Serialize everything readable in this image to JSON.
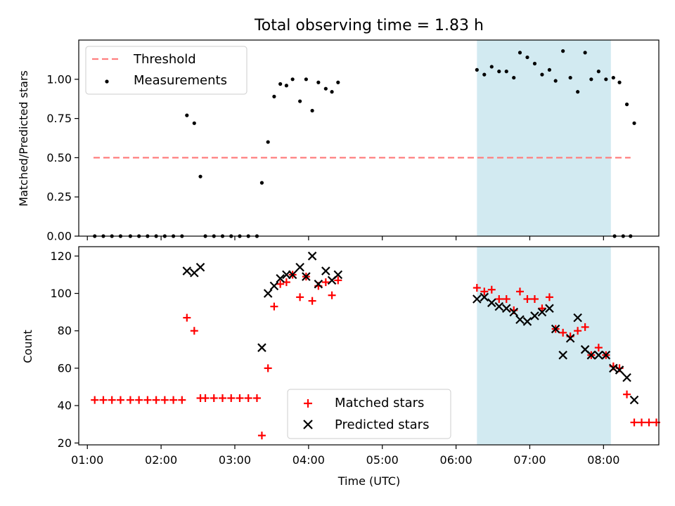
{
  "title": "Total observing time = 1.83 h",
  "chart_data": [
    {
      "type": "scatter",
      "ylabel": "Matched/Predicted stars",
      "xlabel": "",
      "xlim": [
        "00:53",
        "08:45"
      ],
      "ylim": [
        0,
        1.25
      ],
      "yticks": [
        0.0,
        0.25,
        0.5,
        0.75,
        1.0
      ],
      "ytick_labels": [
        "0.00",
        "0.25",
        "0.50",
        "0.75",
        "1.00"
      ],
      "grid": false,
      "legend_position": "top-left",
      "shaded_region": {
        "x0": "06:17",
        "x1": "08:06",
        "color": "#add8e6"
      },
      "threshold": {
        "name": "Threshold",
        "value": 0.5,
        "x0": "01:05",
        "x1": "08:22",
        "color": "#ff7f7f"
      },
      "series": [
        {
          "name": "Measurements",
          "color": "#000000",
          "points": [
            [
              "01:06",
              0
            ],
            [
              "01:13",
              0
            ],
            [
              "01:20",
              0
            ],
            [
              "01:27",
              0
            ],
            [
              "01:35",
              0
            ],
            [
              "01:42",
              0
            ],
            [
              "01:49",
              0
            ],
            [
              "01:56",
              0
            ],
            [
              "02:03",
              0
            ],
            [
              "02:10",
              0
            ],
            [
              "02:17",
              0
            ],
            [
              "02:21",
              0.77
            ],
            [
              "02:27",
              0.72
            ],
            [
              "02:32",
              0.38
            ],
            [
              "02:36",
              0
            ],
            [
              "02:43",
              0
            ],
            [
              "02:50",
              0
            ],
            [
              "02:57",
              0
            ],
            [
              "03:04",
              0
            ],
            [
              "03:11",
              0
            ],
            [
              "03:18",
              0
            ],
            [
              "03:22",
              0.34
            ],
            [
              "03:27",
              0.6
            ],
            [
              "03:32",
              0.89
            ],
            [
              "03:37",
              0.97
            ],
            [
              "03:42",
              0.96
            ],
            [
              "03:47",
              1.0
            ],
            [
              "03:53",
              0.86
            ],
            [
              "03:58",
              1.0
            ],
            [
              "04:03",
              0.8
            ],
            [
              "04:08",
              0.98
            ],
            [
              "04:14",
              0.94
            ],
            [
              "04:19",
              0.92
            ],
            [
              "04:24",
              0.98
            ],
            [
              "06:17",
              1.06
            ],
            [
              "06:23",
              1.03
            ],
            [
              "06:29",
              1.08
            ],
            [
              "06:35",
              1.05
            ],
            [
              "06:41",
              1.05
            ],
            [
              "06:47",
              1.01
            ],
            [
              "06:52",
              1.17
            ],
            [
              "06:58",
              1.14
            ],
            [
              "07:04",
              1.1
            ],
            [
              "07:10",
              1.03
            ],
            [
              "07:16",
              1.06
            ],
            [
              "07:21",
              0.99
            ],
            [
              "07:27",
              1.18
            ],
            [
              "07:33",
              1.01
            ],
            [
              "07:39",
              0.92
            ],
            [
              "07:45",
              1.17
            ],
            [
              "07:50",
              1.0
            ],
            [
              "07:56",
              1.05
            ],
            [
              "08:02",
              1.0
            ],
            [
              "08:08",
              1.01
            ],
            [
              "08:13",
              0.98
            ],
            [
              "08:19",
              0.84
            ],
            [
              "08:25",
              0.72
            ],
            [
              "08:09",
              0
            ],
            [
              "08:16",
              0
            ],
            [
              "08:22",
              0
            ]
          ]
        }
      ]
    },
    {
      "type": "scatter",
      "xlabel": "Time (UTC)",
      "ylabel": "Count",
      "xlim": [
        "00:53",
        "08:45"
      ],
      "ylim": [
        19,
        125
      ],
      "yticks": [
        20,
        40,
        60,
        80,
        100,
        120
      ],
      "xticks": [
        "01:00",
        "02:00",
        "03:00",
        "04:00",
        "05:00",
        "06:00",
        "07:00",
        "08:00"
      ],
      "grid": false,
      "legend_position": "bottom-center",
      "shaded_region": {
        "x0": "06:17",
        "x1": "08:06",
        "color": "#add8e6"
      },
      "series": [
        {
          "name": "Matched stars",
          "marker": "+",
          "color": "#ff0000",
          "points": [
            [
              "01:06",
              43
            ],
            [
              "01:13",
              43
            ],
            [
              "01:20",
              43
            ],
            [
              "01:27",
              43
            ],
            [
              "01:35",
              43
            ],
            [
              "01:42",
              43
            ],
            [
              "01:49",
              43
            ],
            [
              "01:56",
              43
            ],
            [
              "02:03",
              43
            ],
            [
              "02:10",
              43
            ],
            [
              "02:17",
              43
            ],
            [
              "02:21",
              87
            ],
            [
              "02:27",
              80
            ],
            [
              "02:32",
              44
            ],
            [
              "02:36",
              44
            ],
            [
              "02:43",
              44
            ],
            [
              "02:50",
              44
            ],
            [
              "02:57",
              44
            ],
            [
              "03:04",
              44
            ],
            [
              "03:11",
              44
            ],
            [
              "03:18",
              44
            ],
            [
              "03:22",
              24
            ],
            [
              "03:27",
              60
            ],
            [
              "03:32",
              93
            ],
            [
              "03:37",
              105
            ],
            [
              "03:42",
              106
            ],
            [
              "03:47",
              110
            ],
            [
              "03:53",
              98
            ],
            [
              "03:58",
              109
            ],
            [
              "04:03",
              96
            ],
            [
              "04:08",
              104
            ],
            [
              "04:14",
              106
            ],
            [
              "04:19",
              99
            ],
            [
              "04:24",
              107
            ],
            [
              "06:17",
              103
            ],
            [
              "06:23",
              101
            ],
            [
              "06:29",
              102
            ],
            [
              "06:35",
              97
            ],
            [
              "06:41",
              97
            ],
            [
              "06:47",
              91
            ],
            [
              "06:52",
              101
            ],
            [
              "06:58",
              97
            ],
            [
              "07:04",
              97
            ],
            [
              "07:10",
              92
            ],
            [
              "07:16",
              98
            ],
            [
              "07:21",
              81
            ],
            [
              "07:27",
              79
            ],
            [
              "07:33",
              77
            ],
            [
              "07:39",
              80
            ],
            [
              "07:45",
              82
            ],
            [
              "07:50",
              67
            ],
            [
              "07:56",
              71
            ],
            [
              "08:02",
              67
            ],
            [
              "08:08",
              61
            ],
            [
              "08:13",
              60
            ],
            [
              "08:19",
              46
            ],
            [
              "08:25",
              31
            ],
            [
              "08:31",
              31
            ],
            [
              "08:37",
              31
            ],
            [
              "08:43",
              31
            ]
          ]
        },
        {
          "name": "Predicted stars",
          "marker": "x",
          "color": "#000000",
          "points": [
            [
              "02:21",
              112
            ],
            [
              "02:27",
              111
            ],
            [
              "02:32",
              114
            ],
            [
              "03:22",
              71
            ],
            [
              "03:27",
              100
            ],
            [
              "03:32",
              104
            ],
            [
              "03:37",
              108
            ],
            [
              "03:42",
              110
            ],
            [
              "03:47",
              110
            ],
            [
              "03:53",
              114
            ],
            [
              "03:58",
              109
            ],
            [
              "04:03",
              120
            ],
            [
              "04:08",
              105
            ],
            [
              "04:14",
              112
            ],
            [
              "04:19",
              107
            ],
            [
              "04:24",
              110
            ],
            [
              "06:17",
              97
            ],
            [
              "06:23",
              98
            ],
            [
              "06:29",
              95
            ],
            [
              "06:35",
              93
            ],
            [
              "06:41",
              92
            ],
            [
              "06:47",
              90
            ],
            [
              "06:52",
              86
            ],
            [
              "06:58",
              85
            ],
            [
              "07:04",
              88
            ],
            [
              "07:10",
              90
            ],
            [
              "07:16",
              92
            ],
            [
              "07:21",
              81
            ],
            [
              "07:27",
              67
            ],
            [
              "07:33",
              76
            ],
            [
              "07:39",
              87
            ],
            [
              "07:45",
              70
            ],
            [
              "07:50",
              67
            ],
            [
              "07:56",
              67
            ],
            [
              "08:02",
              67
            ],
            [
              "08:08",
              60
            ],
            [
              "08:13",
              59
            ],
            [
              "08:19",
              55
            ],
            [
              "08:25",
              43
            ]
          ]
        }
      ]
    }
  ]
}
